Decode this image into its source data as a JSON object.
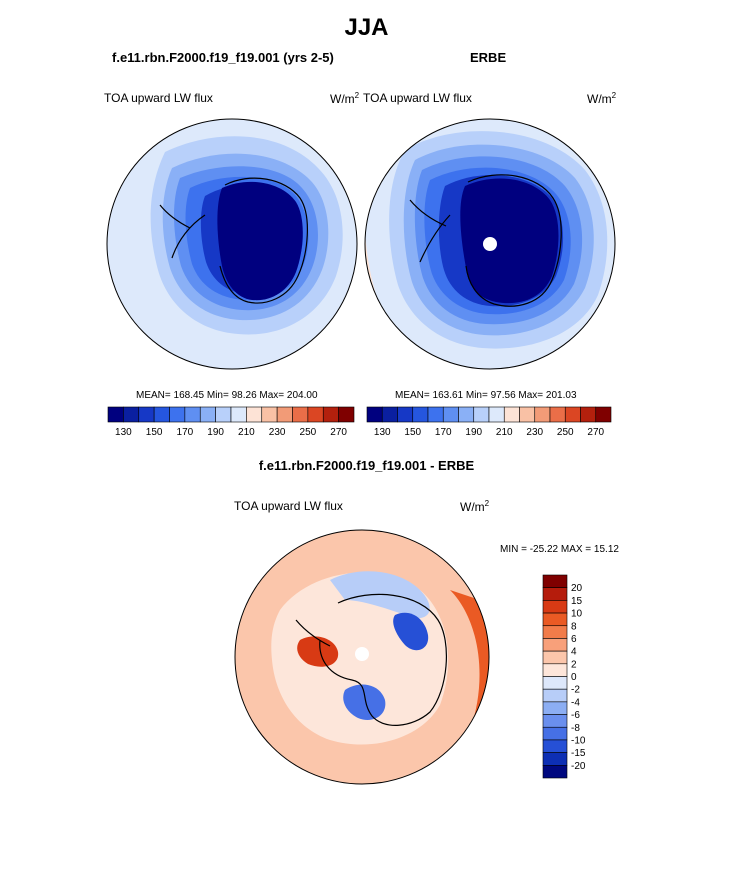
{
  "season": "JJA",
  "panels": {
    "model": {
      "case": "f.e11.rbn.F2000.f19_f19.001 (yrs 2-5)",
      "variable": "TOA upward LW flux",
      "units": "W/m",
      "units_exp": "2",
      "stats": "MEAN= 168.45  Min=  98.26  Max= 204.00"
    },
    "obs": {
      "case": "ERBE",
      "variable": "TOA upward LW flux",
      "units": "W/m",
      "units_exp": "2",
      "stats": "MEAN= 163.61  Min=  97.56  Max= 201.03"
    },
    "diff": {
      "case": "f.e11.rbn.F2000.f19_f19.001 - ERBE",
      "variable": "TOA upward LW flux",
      "units": "W/m",
      "units_exp": "2",
      "stats": "MIN = -25.22 MAX =  15.12"
    }
  },
  "chart_data": [
    {
      "type": "heatmap",
      "projection": "south polar stereographic",
      "title": "TOA upward LW flux",
      "units": "W/m2",
      "mean": 168.45,
      "min": 98.26,
      "max": 204.0,
      "levels": [
        130,
        140,
        150,
        160,
        170,
        180,
        190,
        200,
        210,
        220,
        230,
        240,
        250,
        260,
        270
      ],
      "colorbar_labels": [
        "130",
        "150",
        "170",
        "190",
        "210",
        "230",
        "250",
        "270"
      ]
    },
    {
      "type": "heatmap",
      "projection": "south polar stereographic",
      "title": "TOA upward LW flux",
      "units": "W/m2",
      "mean": 163.61,
      "min": 97.56,
      "max": 201.03,
      "levels": [
        130,
        140,
        150,
        160,
        170,
        180,
        190,
        200,
        210,
        220,
        230,
        240,
        250,
        260,
        270
      ],
      "colorbar_labels": [
        "130",
        "150",
        "170",
        "190",
        "210",
        "230",
        "250",
        "270"
      ]
    },
    {
      "type": "heatmap",
      "projection": "south polar stereographic",
      "title": "TOA upward LW flux",
      "units": "W/m2",
      "min": -25.22,
      "max": 15.12,
      "levels": [
        -20,
        -15,
        -10,
        -8,
        -6,
        -4,
        -2,
        0,
        2,
        4,
        6,
        8,
        10,
        15,
        20
      ],
      "colorbar_labels": [
        "20",
        "15",
        "10",
        "8",
        "6",
        "4",
        "2",
        "0",
        "-2",
        "-4",
        "-6",
        "-8",
        "-10",
        "-15",
        "-20"
      ]
    }
  ],
  "colors": {
    "seq16": [
      "#00007f",
      "#0a1fa0",
      "#1638c6",
      "#2556df",
      "#3d72ee",
      "#5f8ff2",
      "#8ab0f6",
      "#b8d0fa",
      "#dde9fb",
      "#fde3d6",
      "#f9c1a5",
      "#f29b77",
      "#ea6e48",
      "#db4623",
      "#b3200d",
      "#7f0000"
    ],
    "div16": [
      "#7f0000",
      "#b51c0c",
      "#d83a14",
      "#ea5a24",
      "#f27c4a",
      "#f8a07a",
      "#fbc6ab",
      "#fde6da",
      "#dde8fb",
      "#b7cdf8",
      "#8caef3",
      "#6a8fee",
      "#4670e6",
      "#2650d6",
      "#0d2fb4",
      "#00087f"
    ]
  }
}
